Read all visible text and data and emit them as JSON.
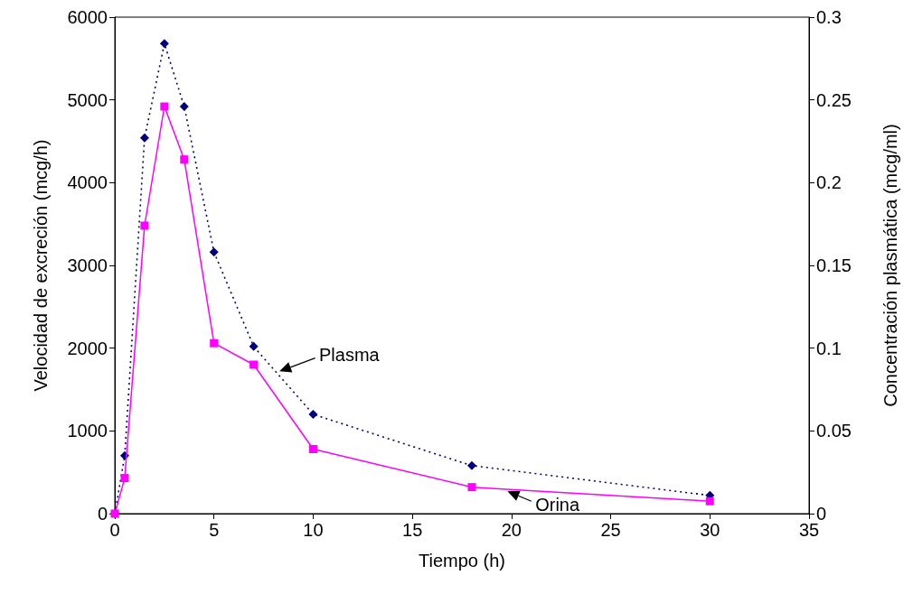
{
  "chart_data": {
    "type": "line",
    "xlabel": "Tiempo (h)",
    "ylabel": "Velocidad de excreción (mcg/h)",
    "y2label": "Concentración plasmática (mcg/ml)",
    "x": [
      0,
      0.5,
      1.5,
      2.5,
      3.5,
      5,
      7,
      10,
      18,
      30
    ],
    "series": [
      {
        "name": "Plasma",
        "color": "#000080",
        "axis": "y2",
        "marker": "diamond",
        "line_style": "dotted",
        "values": [
          0,
          0.035,
          0.227,
          0.284,
          0.246,
          0.158,
          0.101,
          0.06,
          0.029,
          0.011
        ]
      },
      {
        "name": "Orina",
        "color": "#ff00ff",
        "marker": "square",
        "line_style": "solid",
        "values": [
          0,
          430,
          3480,
          4920,
          4280,
          2060,
          1800,
          780,
          320,
          150
        ]
      }
    ],
    "xlim": [
      0,
      35
    ],
    "xticks": [
      0,
      5,
      10,
      15,
      20,
      25,
      30,
      35
    ],
    "ylim": [
      0,
      6000
    ],
    "yticks": [
      0,
      1000,
      2000,
      3000,
      4000,
      5000,
      6000
    ],
    "y2lim": [
      0,
      0.3
    ],
    "y2ticks": [
      0,
      0.05,
      0.1,
      0.15,
      0.2,
      0.25,
      0.3
    ],
    "grid": false,
    "legend": false
  }
}
